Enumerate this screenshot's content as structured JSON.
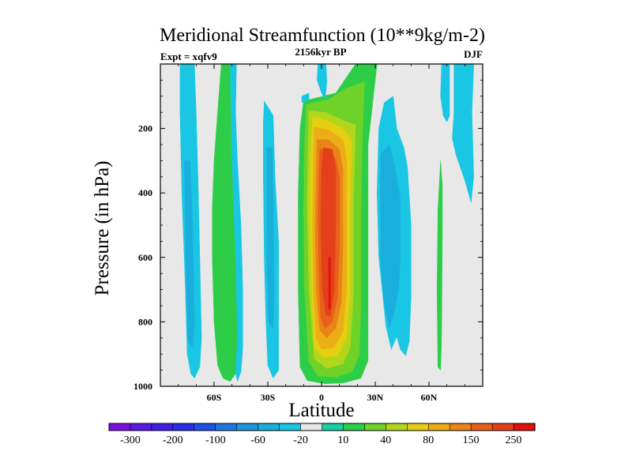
{
  "chart_data": {
    "type": "heatmap",
    "subtype": "filled-contour",
    "title": "Meridional Streamfunction (10**9kg/m-2)",
    "subtitle_left": "Expt = xqfv9",
    "subtitle_center": "2156kyr BP",
    "subtitle_right": "DJF",
    "xlabel": "Latitude",
    "ylabel": "Pressure (in hPa)",
    "xlim": [
      -90,
      90
    ],
    "ylim": [
      1000,
      0
    ],
    "x_ticks": [
      {
        "value": -60,
        "label": "60S"
      },
      {
        "value": -30,
        "label": "30S"
      },
      {
        "value": 0,
        "label": "0"
      },
      {
        "value": 30,
        "label": "30N"
      },
      {
        "value": 60,
        "label": "60N"
      }
    ],
    "y_ticks": [
      {
        "value": 200,
        "label": "200"
      },
      {
        "value": 400,
        "label": "400"
      },
      {
        "value": 600,
        "label": "600"
      },
      {
        "value": 800,
        "label": "800"
      },
      {
        "value": 1000,
        "label": "1000"
      }
    ],
    "colorbar": {
      "colors": [
        "#7a10e0",
        "#5a19e6",
        "#3f1fe8",
        "#2a2fe8",
        "#2050e8",
        "#1f78e0",
        "#1d98dc",
        "#1aaedc",
        "#19c6e4",
        "#e8e8e8",
        "#18cfa6",
        "#2ecd48",
        "#6fd228",
        "#b2d61c",
        "#e6ce10",
        "#ecae16",
        "#ea8418",
        "#e8601a",
        "#e4401a",
        "#e21010"
      ],
      "labels": [
        {
          "after_band": 1,
          "text": "-300"
        },
        {
          "after_band": 3,
          "text": "-200"
        },
        {
          "after_band": 5,
          "text": "-100"
        },
        {
          "after_band": 7,
          "text": "-60"
        },
        {
          "after_band": 9,
          "text": "-20"
        },
        {
          "after_band": 11,
          "text": "10"
        },
        {
          "after_band": 13,
          "text": "40"
        },
        {
          "after_band": 15,
          "text": "80"
        },
        {
          "after_band": 17,
          "text": "150"
        },
        {
          "after_band": 19,
          "text": "250"
        }
      ]
    },
    "background_color": "#e8e8e8",
    "contour_regions": [
      {
        "name": "south-polar-cell",
        "level": -10,
        "color": "#19c6e4",
        "points": [
          [
            -79,
            0
          ],
          [
            -71,
            0
          ],
          [
            -70,
            150
          ],
          [
            -69,
            350
          ],
          [
            -68,
            600
          ],
          [
            -67,
            850
          ],
          [
            -68,
            940
          ],
          [
            -71,
            975
          ],
          [
            -73,
            960
          ],
          [
            -75,
            900
          ],
          [
            -76,
            700
          ],
          [
            -78,
            400
          ],
          [
            -79,
            150
          ]
        ]
      },
      {
        "name": "south-polar-core",
        "level": -20,
        "color": "#1aaedc",
        "points": [
          [
            -76.5,
            300
          ],
          [
            -73.5,
            300
          ],
          [
            -72,
            500
          ],
          [
            -71,
            800
          ],
          [
            -72,
            880
          ],
          [
            -74.5,
            860
          ],
          [
            -75.5,
            700
          ]
        ]
      },
      {
        "name": "ferrel-band-south",
        "level": 10,
        "color": "#2ecd48",
        "points": [
          [
            -56,
            0
          ],
          [
            -51,
            0
          ],
          [
            -50,
            300
          ],
          [
            -48,
            600
          ],
          [
            -47,
            850
          ],
          [
            -48,
            960
          ],
          [
            -51,
            985
          ],
          [
            -55,
            975
          ],
          [
            -58,
            935
          ],
          [
            -60,
            800
          ],
          [
            -61,
            600
          ],
          [
            -61,
            450
          ],
          [
            -60,
            300
          ],
          [
            -58,
            150
          ]
        ]
      },
      {
        "name": "ferrel-edge-south",
        "level": 5,
        "color": "#19c6e4",
        "points": [
          [
            -51,
            0
          ],
          [
            -47.5,
            0
          ],
          [
            -48,
            150
          ],
          [
            -47,
            300
          ],
          [
            -45,
            500
          ],
          [
            -44,
            700
          ],
          [
            -44,
            880
          ],
          [
            -45,
            955
          ],
          [
            -47,
            985
          ],
          [
            -48,
            960
          ],
          [
            -47,
            850
          ],
          [
            -48,
            600
          ],
          [
            -50,
            300
          ]
        ]
      },
      {
        "name": "south-tropic-cell",
        "level": -10,
        "color": "#19c6e4",
        "points": [
          [
            -32,
            115
          ],
          [
            -27,
            160
          ],
          [
            -26,
            350
          ],
          [
            -24,
            550
          ],
          [
            -24,
            800
          ],
          [
            -24,
            950
          ],
          [
            -27,
            975
          ],
          [
            -30,
            935
          ],
          [
            -31,
            800
          ],
          [
            -32,
            600
          ],
          [
            -32.5,
            350
          ],
          [
            -32.5,
            180
          ]
        ]
      },
      {
        "name": "south-tropic-core",
        "level": -20,
        "color": "#1aaedc",
        "points": [
          [
            -30.5,
            260
          ],
          [
            -27.5,
            260
          ],
          [
            -27,
            450
          ],
          [
            -26.5,
            700
          ],
          [
            -27,
            820
          ],
          [
            -29.5,
            800
          ],
          [
            -30.5,
            600
          ]
        ]
      },
      {
        "name": "hadley-cell-10",
        "level": 10,
        "color": "#2ecd48",
        "points": [
          [
            -10,
            115
          ],
          [
            8,
            90
          ],
          [
            19,
            0
          ],
          [
            31,
            0
          ],
          [
            29,
            100
          ],
          [
            26,
            250
          ],
          [
            26,
            500
          ],
          [
            26,
            750
          ],
          [
            26,
            920
          ],
          [
            22,
            975
          ],
          [
            12,
            990
          ],
          [
            2,
            992
          ],
          [
            -8,
            982
          ],
          [
            -12,
            940
          ],
          [
            -13,
            700
          ],
          [
            -13,
            400
          ],
          [
            -12,
            200
          ]
        ]
      },
      {
        "name": "hadley-cell-40",
        "level": 40,
        "color": "#6fd228",
        "points": [
          [
            -8.5,
            125
          ],
          [
            4,
            110
          ],
          [
            14,
            75
          ],
          [
            24,
            55
          ],
          [
            23,
            200
          ],
          [
            22,
            450
          ],
          [
            22,
            750
          ],
          [
            21,
            905
          ],
          [
            17,
            955
          ],
          [
            8,
            972
          ],
          [
            -2,
            968
          ],
          [
            -7,
            925
          ],
          [
            -9.5,
            700
          ],
          [
            -10,
            450
          ],
          [
            -9.5,
            250
          ]
        ]
      },
      {
        "name": "hadley-cell-80",
        "level": 80,
        "color": "#b2d61c",
        "points": [
          [
            -7,
            145
          ],
          [
            2,
            150
          ],
          [
            12,
            175
          ],
          [
            19,
            190
          ],
          [
            18,
            400
          ],
          [
            18,
            700
          ],
          [
            16,
            880
          ],
          [
            12,
            930
          ],
          [
            3,
            945
          ],
          [
            -4,
            915
          ],
          [
            -7,
            700
          ],
          [
            -8,
            450
          ],
          [
            -7.5,
            250
          ]
        ]
      },
      {
        "name": "hadley-cell-100",
        "level": 100,
        "color": "#e6ce10",
        "points": [
          [
            -5,
            165
          ],
          [
            3,
            175
          ],
          [
            12,
            200
          ],
          [
            17,
            240
          ],
          [
            16,
            450
          ],
          [
            16,
            700
          ],
          [
            14,
            850
          ],
          [
            9,
            905
          ],
          [
            1,
            910
          ],
          [
            -4,
            880
          ],
          [
            -5.5,
            700
          ],
          [
            -6.5,
            450
          ],
          [
            -6,
            280
          ]
        ]
      },
      {
        "name": "hadley-cell-150",
        "level": 150,
        "color": "#ecae16",
        "points": [
          [
            -4,
            195
          ],
          [
            4,
            205
          ],
          [
            12,
            235
          ],
          [
            14,
            300
          ],
          [
            14,
            500
          ],
          [
            14,
            700
          ],
          [
            12,
            830
          ],
          [
            7,
            880
          ],
          [
            0,
            885
          ],
          [
            -3,
            850
          ],
          [
            -4.5,
            700
          ],
          [
            -5,
            500
          ],
          [
            -4.5,
            300
          ]
        ]
      },
      {
        "name": "hadley-cell-200",
        "level": 200,
        "color": "#ea8418",
        "points": [
          [
            -2.5,
            235
          ],
          [
            4,
            235
          ],
          [
            10,
            265
          ],
          [
            12,
            330
          ],
          [
            12,
            550
          ],
          [
            11,
            740
          ],
          [
            8,
            820
          ],
          [
            3,
            850
          ],
          [
            -1,
            825
          ],
          [
            -3,
            700
          ],
          [
            -3.5,
            500
          ],
          [
            -3,
            330
          ]
        ]
      },
      {
        "name": "hadley-cell-250",
        "level": 250,
        "color": "#e8601a",
        "points": [
          [
            -1,
            265
          ],
          [
            4,
            265
          ],
          [
            8,
            295
          ],
          [
            10,
            350
          ],
          [
            10,
            550
          ],
          [
            9,
            720
          ],
          [
            6,
            800
          ],
          [
            2,
            820
          ],
          [
            -0.5,
            790
          ],
          [
            -1.5,
            650
          ],
          [
            -2,
            480
          ],
          [
            -1.5,
            330
          ]
        ]
      },
      {
        "name": "hadley-cell-300",
        "level": 300,
        "color": "#e4401a",
        "points": [
          [
            1,
            260
          ],
          [
            6,
            265
          ],
          [
            8,
            330
          ],
          [
            8,
            500
          ],
          [
            7,
            700
          ],
          [
            5,
            780
          ],
          [
            2.5,
            780
          ],
          [
            0.5,
            700
          ],
          [
            -0.5,
            500
          ],
          [
            0,
            330
          ]
        ]
      },
      {
        "name": "hadley-cell-max",
        "level": 350,
        "color": "#e21010",
        "points": [
          [
            4,
            600
          ],
          [
            5,
            600
          ],
          [
            5,
            760
          ],
          [
            4,
            760
          ]
        ]
      },
      {
        "name": "northern-cell",
        "level": -10,
        "color": "#19c6e4",
        "points": [
          [
            35,
            120
          ],
          [
            40,
            100
          ],
          [
            42,
            200
          ],
          [
            46,
            260
          ],
          [
            48,
            320
          ],
          [
            50,
            500
          ],
          [
            50,
            720
          ],
          [
            49,
            860
          ],
          [
            47,
            905
          ],
          [
            44,
            885
          ],
          [
            42,
            845
          ],
          [
            39,
            885
          ],
          [
            36,
            815
          ],
          [
            32,
            600
          ],
          [
            31,
            400
          ],
          [
            32,
            200
          ]
        ]
      },
      {
        "name": "northern-cell-core",
        "level": -20,
        "color": "#1aaedc",
        "points": [
          [
            33,
            280
          ],
          [
            38,
            250
          ],
          [
            41,
            320
          ],
          [
            44,
            420
          ],
          [
            44,
            600
          ],
          [
            43,
            700
          ],
          [
            41,
            760
          ],
          [
            38,
            820
          ],
          [
            35,
            740
          ],
          [
            33,
            600
          ],
          [
            33,
            450
          ]
        ]
      },
      {
        "name": "north-upper-cell",
        "level": -10,
        "color": "#19c6e4",
        "points": [
          [
            74,
            0
          ],
          [
            85,
            0
          ],
          [
            84,
            150
          ],
          [
            85,
            350
          ],
          [
            83.5,
            430
          ],
          [
            80,
            360
          ],
          [
            75,
            280
          ],
          [
            73,
            230
          ],
          [
            74,
            150
          ]
        ]
      },
      {
        "name": "north-strip",
        "level": -10,
        "color": "#19c6e4",
        "points": [
          [
            67,
            0
          ],
          [
            71.5,
            0
          ],
          [
            71.5,
            160
          ],
          [
            70,
            180
          ],
          [
            68,
            160
          ],
          [
            66.5,
            100
          ]
        ]
      },
      {
        "name": "north-green-strip",
        "level": 10,
        "color": "#2ecd48",
        "points": [
          [
            65,
            455
          ],
          [
            66.5,
            300
          ],
          [
            67.5,
            380
          ],
          [
            67.5,
            520
          ],
          [
            67,
            860
          ],
          [
            66.5,
            950
          ],
          [
            65,
            940
          ],
          [
            64.5,
            700
          ]
        ]
      },
      {
        "name": "top-blob-a",
        "level": -10,
        "color": "#19c6e4",
        "points": [
          [
            -2,
            0
          ],
          [
            2.5,
            0
          ],
          [
            3,
            55
          ],
          [
            2,
            110
          ],
          [
            0,
            90
          ],
          [
            -2.5,
            50
          ]
        ]
      },
      {
        "name": "top-blob-b",
        "level": -10,
        "color": "#19c6e4",
        "points": [
          [
            -11,
            100
          ],
          [
            -7,
            90
          ],
          [
            -7,
            110
          ],
          [
            -11,
            120
          ]
        ]
      }
    ]
  }
}
